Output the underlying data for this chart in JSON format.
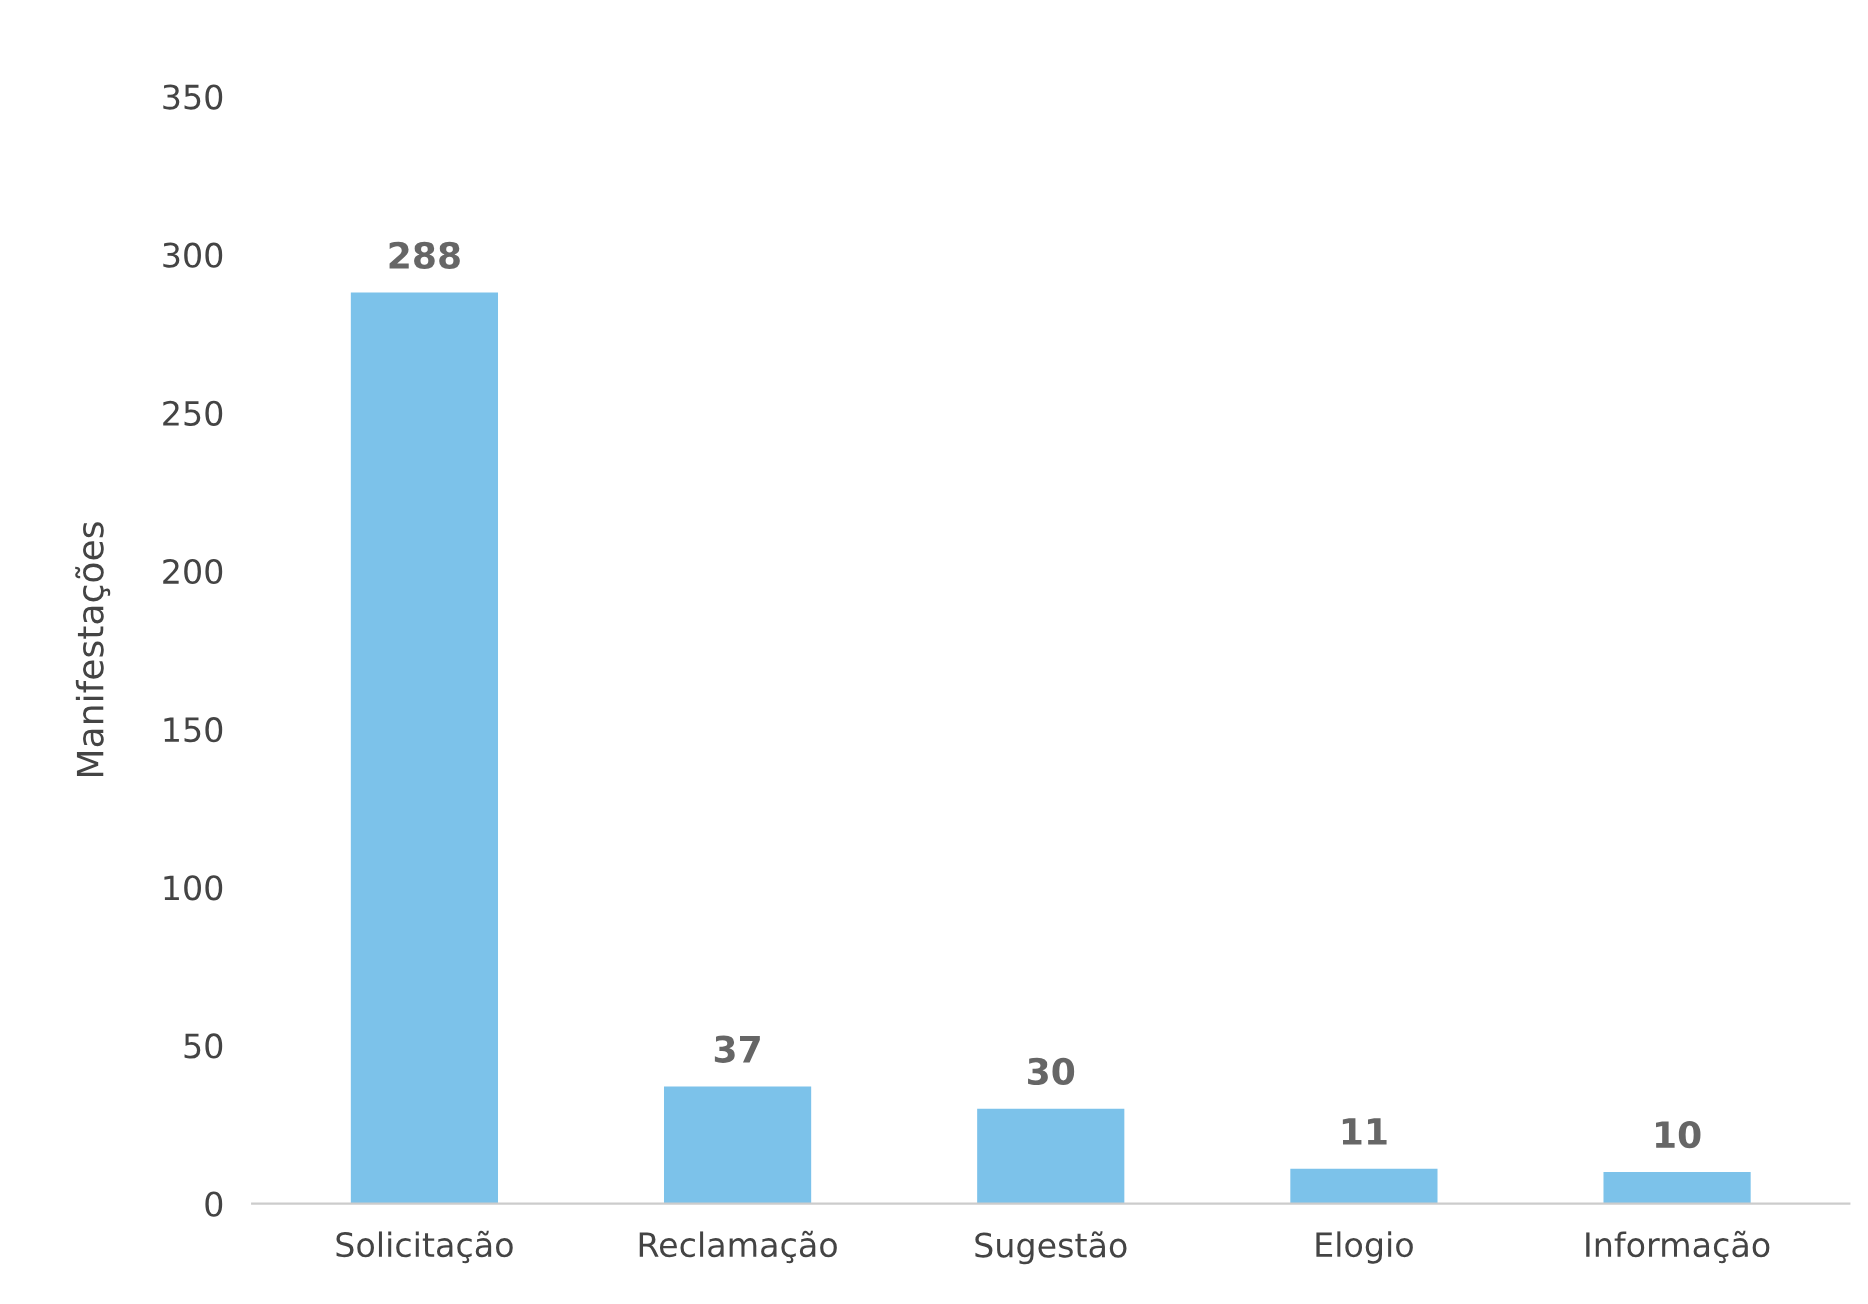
{
  "chart_data": {
    "type": "bar",
    "ylabel": "Manifestações",
    "categories": [
      "Solicitação",
      "Reclamação",
      "Sugestão",
      "Elogio",
      "Informação"
    ],
    "values": [
      288,
      37,
      30,
      11,
      10
    ],
    "color": "#7cc2ea",
    "ylim": [
      0,
      350
    ],
    "yticks": [
      0,
      50,
      100,
      150,
      200,
      250,
      300,
      350
    ],
    "grid": false,
    "data_labels": true
  }
}
